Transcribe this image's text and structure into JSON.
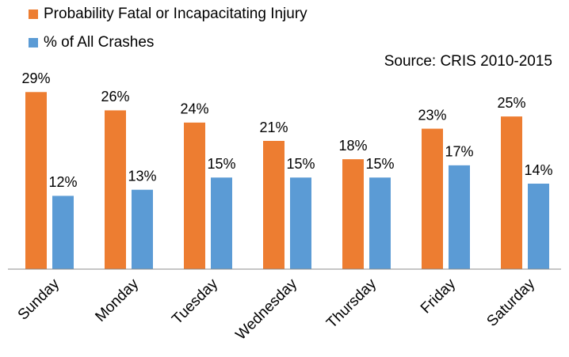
{
  "chart_data": {
    "type": "bar",
    "annotation": "Source: CRIS 2010-2015",
    "categories": [
      "Sunday",
      "Monday",
      "Tuesday",
      "Wednesday",
      "Thursday",
      "Friday",
      "Saturday"
    ],
    "series": [
      {
        "name": "Probability Fatal or Incapacitating Injury",
        "color": "#ED7D31",
        "values": [
          29,
          26,
          24,
          21,
          18,
          23,
          25
        ],
        "value_labels": [
          "29%",
          "26%",
          "24%",
          "21%",
          "18%",
          "23%",
          "25%"
        ]
      },
      {
        "name": "% of All Crashes",
        "color": "#5B9BD5",
        "values": [
          12,
          13,
          15,
          15,
          15,
          17,
          14
        ],
        "value_labels": [
          "12%",
          "13%",
          "15%",
          "15%",
          "15%",
          "17%",
          "14%"
        ]
      }
    ],
    "ylim": [
      0,
      35
    ],
    "legend": "top-left"
  }
}
